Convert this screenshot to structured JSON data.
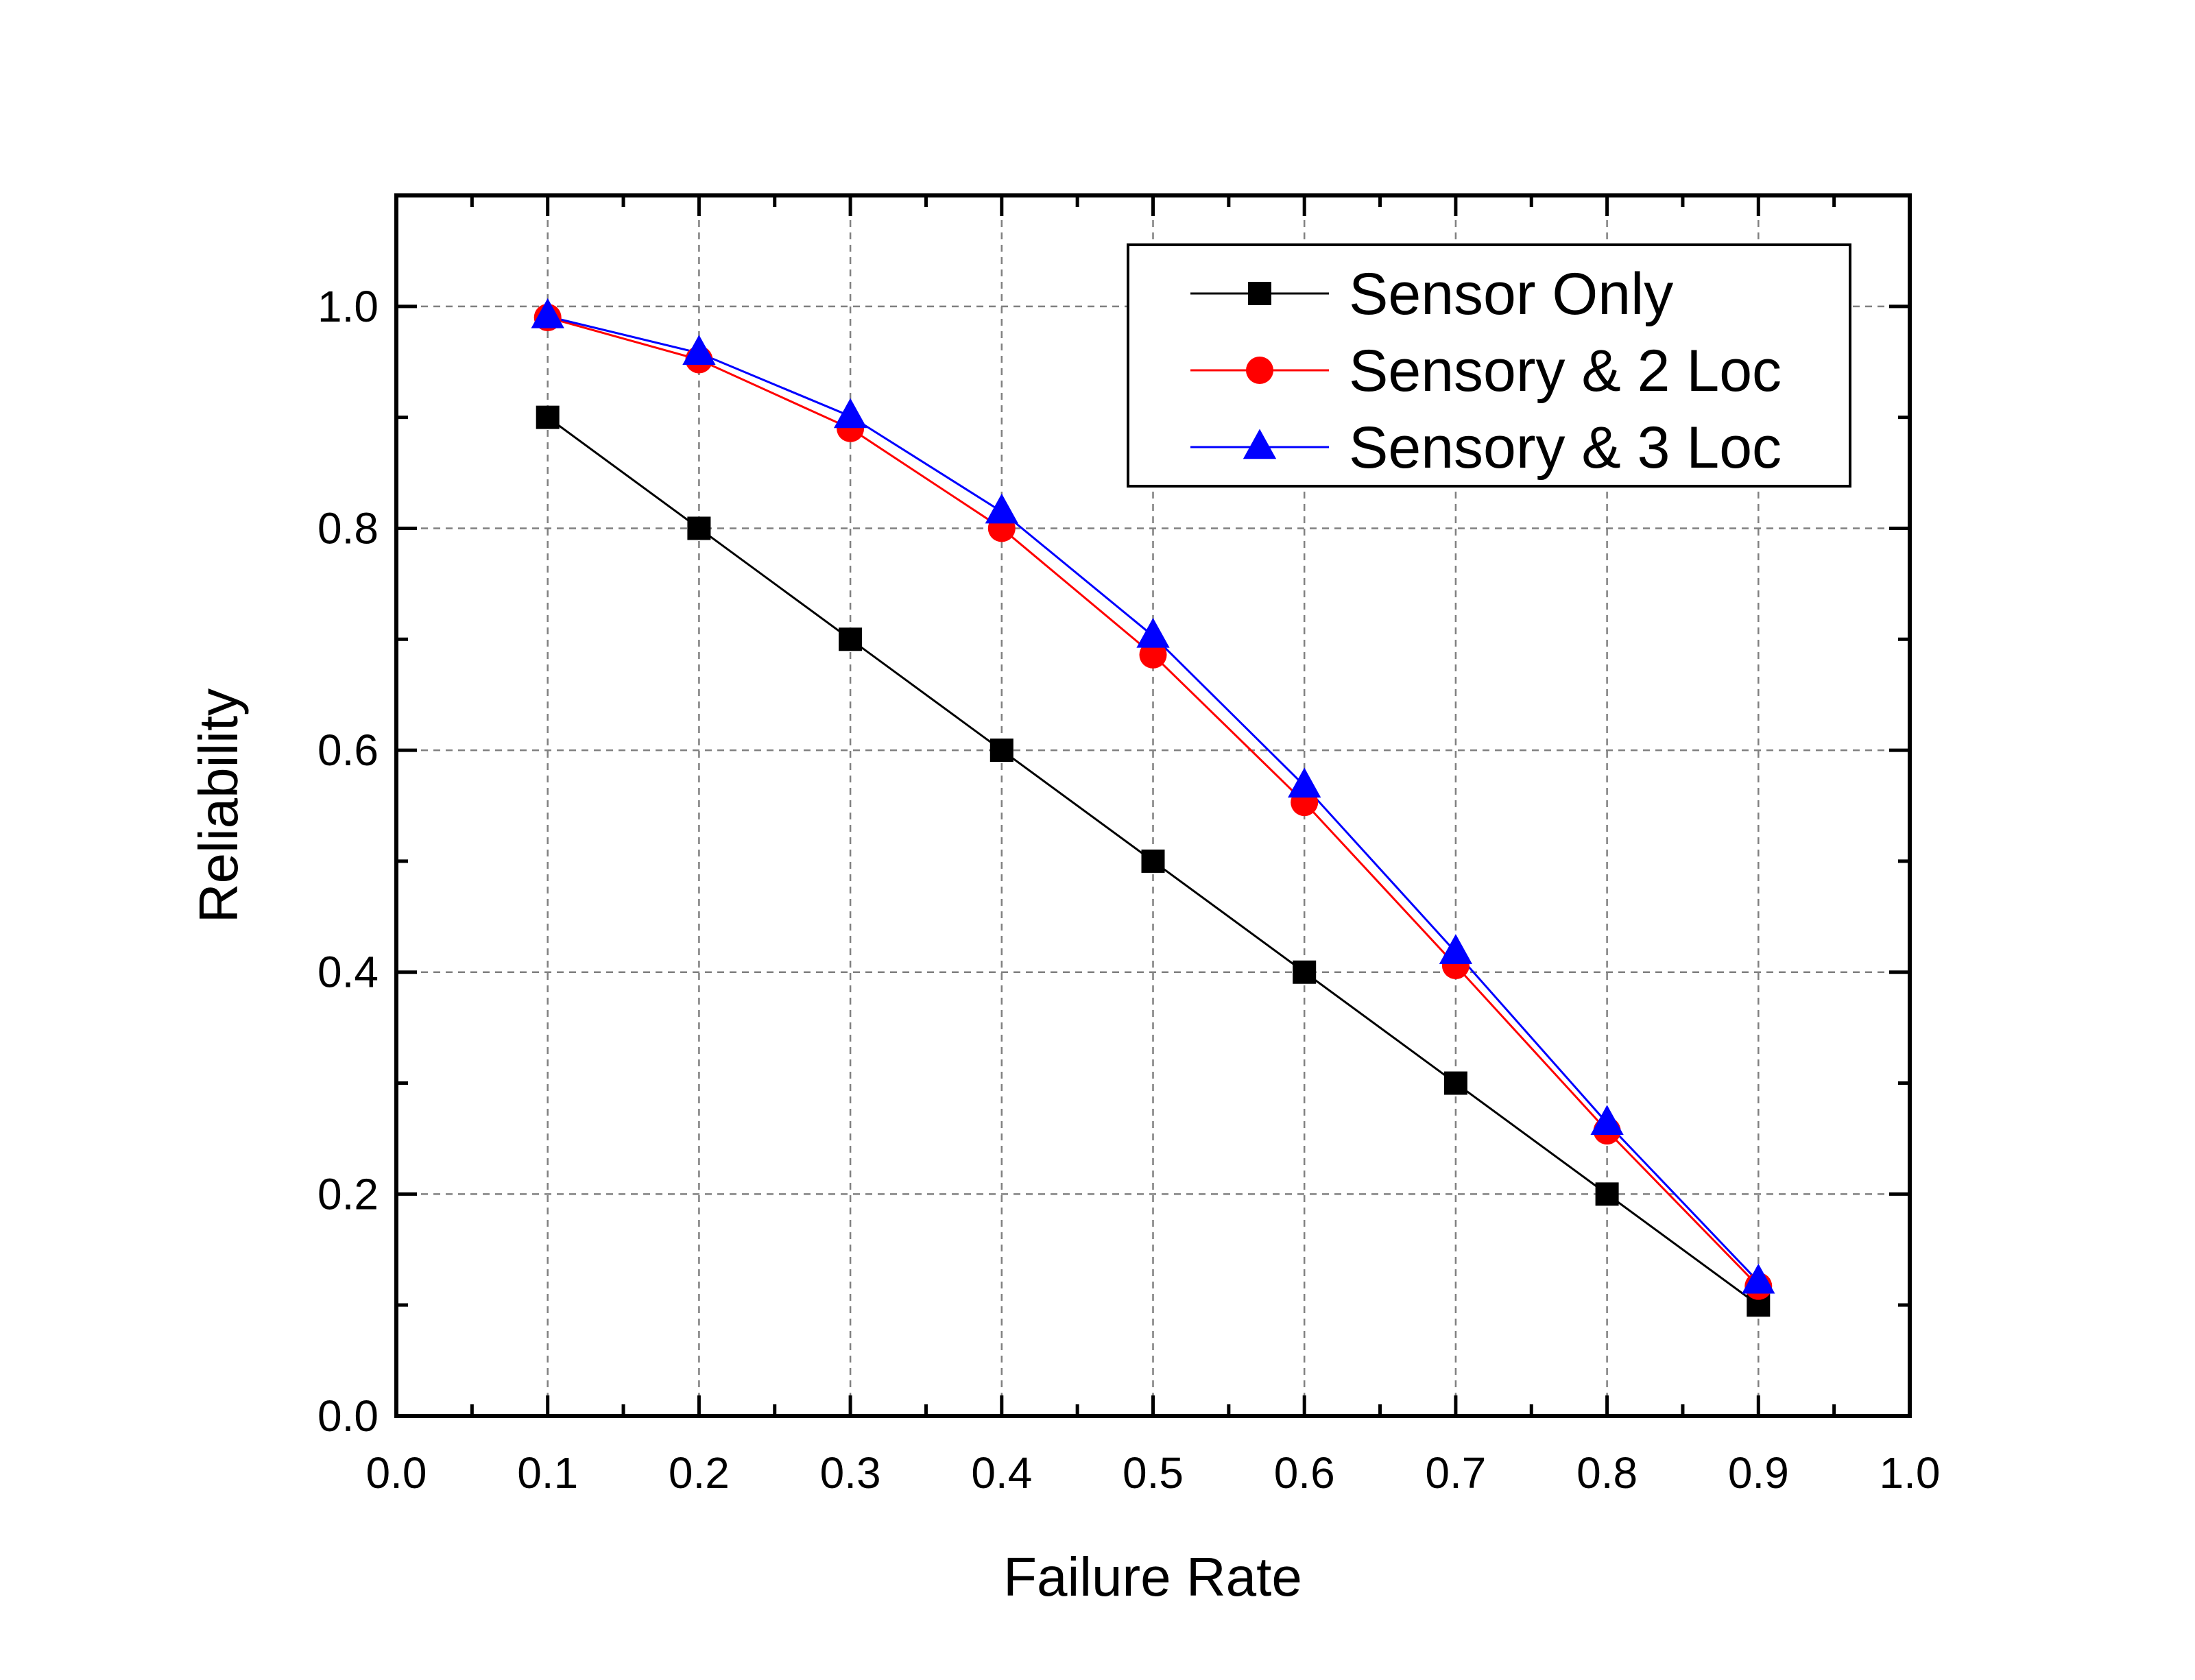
{
  "chart_data": {
    "type": "line",
    "title": "",
    "xlabel": "Failure Rate",
    "ylabel": "Reliability",
    "xlim": [
      0.0,
      1.0
    ],
    "ylim": [
      0.0,
      1.1
    ],
    "x_ticks": [
      "0.0",
      "0.1",
      "0.2",
      "0.3",
      "0.4",
      "0.5",
      "0.6",
      "0.7",
      "0.8",
      "0.9",
      "1.0"
    ],
    "y_ticks": [
      "0.0",
      "0.2",
      "0.4",
      "0.6",
      "0.8",
      "1.0"
    ],
    "grid": true,
    "legend_position": "top-right",
    "x": [
      0.1,
      0.2,
      0.3,
      0.4,
      0.5,
      0.6,
      0.7,
      0.8,
      0.9
    ],
    "series": [
      {
        "name": "Sensor Only",
        "color": "#000000",
        "marker": "square",
        "values": [
          0.9,
          0.8,
          0.7,
          0.6,
          0.5,
          0.4,
          0.3,
          0.2,
          0.1
        ]
      },
      {
        "name": "Sensory & 2 Loc",
        "color": "#ff0000",
        "marker": "circle",
        "values": [
          0.99,
          0.952,
          0.89,
          0.8,
          0.686,
          0.553,
          0.406,
          0.257,
          0.117
        ]
      },
      {
        "name": "Sensory & 3 Loc",
        "color": "#0000ff",
        "marker": "triangle",
        "values": [
          0.991,
          0.958,
          0.901,
          0.815,
          0.703,
          0.568,
          0.418,
          0.264,
          0.121
        ]
      }
    ]
  }
}
